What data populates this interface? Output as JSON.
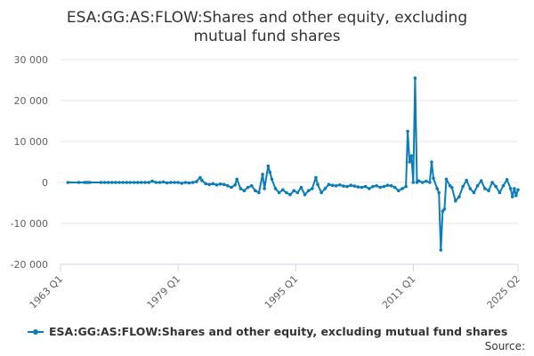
{
  "chart_data": {
    "type": "line",
    "title_lines": [
      "ESA:GG:AS:FLOW:Shares and other equity, excluding",
      "mutual fund shares"
    ],
    "xlabel": "",
    "ylabel": "",
    "x_start": "1963 Q1",
    "x_end": "2025 Q2",
    "x_ticks": [
      "1963 Q1",
      "1979 Q1",
      "1995 Q1",
      "2011 Q1",
      "2025 Q2"
    ],
    "ylim": [
      -20000,
      30000
    ],
    "y_ticks": [
      -20000,
      -10000,
      0,
      10000,
      20000,
      30000
    ],
    "y_tick_labels": [
      "-20 000",
      "-10 000",
      "0",
      "10 000",
      "20 000",
      "30 000"
    ],
    "grid": true,
    "legend_position": "bottom",
    "source_label": "Source:",
    "colors": {
      "series": "#0b7cba",
      "grid": "#e6e6e6",
      "axis": "#ccd6eb"
    },
    "series": [
      {
        "name": "ESA:GG:AS:FLOW:Shares and other equity, excluding mutual fund shares",
        "points": [
          [
            "1964 Q1",
            0
          ],
          [
            "1965 Q3",
            0
          ],
          [
            "1966 Q2",
            0
          ],
          [
            "1966 Q3",
            0
          ],
          [
            "1966 Q4",
            0
          ],
          [
            "1967 Q1",
            0
          ],
          [
            "1968 Q3",
            0
          ],
          [
            "1969 Q1",
            0
          ],
          [
            "1969 Q3",
            0
          ],
          [
            "1970 Q1",
            0
          ],
          [
            "1970 Q3",
            0
          ],
          [
            "1971 Q1",
            0
          ],
          [
            "1971 Q3",
            0
          ],
          [
            "1972 Q1",
            0
          ],
          [
            "1972 Q3",
            0
          ],
          [
            "1973 Q1",
            0
          ],
          [
            "1973 Q3",
            0
          ],
          [
            "1974 Q1",
            0
          ],
          [
            "1974 Q3",
            0
          ],
          [
            "1975 Q1",
            0
          ],
          [
            "1975 Q3",
            300
          ],
          [
            "1976 Q1",
            0
          ],
          [
            "1976 Q3",
            0
          ],
          [
            "1977 Q1",
            100
          ],
          [
            "1977 Q3",
            -100
          ],
          [
            "1978 Q1",
            0
          ],
          [
            "1978 Q3",
            0
          ],
          [
            "1979 Q1",
            0
          ],
          [
            "1979 Q3",
            -200
          ],
          [
            "1980 Q1",
            0
          ],
          [
            "1980 Q3",
            -100
          ],
          [
            "1981 Q1",
            0
          ],
          [
            "1981 Q3",
            200
          ],
          [
            "1982 Q1",
            1200
          ],
          [
            "1982 Q2",
            500
          ],
          [
            "1982 Q4",
            -300
          ],
          [
            "1983 Q2",
            -500
          ],
          [
            "1983 Q4",
            -300
          ],
          [
            "1984 Q2",
            -600
          ],
          [
            "1984 Q4",
            -400
          ],
          [
            "1985 Q2",
            -500
          ],
          [
            "1985 Q4",
            -800
          ],
          [
            "1986 Q2",
            -1200
          ],
          [
            "1986 Q4",
            -600
          ],
          [
            "1987 Q1",
            800
          ],
          [
            "1987 Q3",
            -1500
          ],
          [
            "1988 Q1",
            -2000
          ],
          [
            "1988 Q3",
            -1200
          ],
          [
            "1989 Q1",
            -800
          ],
          [
            "1989 Q3",
            -2000
          ],
          [
            "1990 Q1",
            -2500
          ],
          [
            "1990 Q3",
            2000
          ],
          [
            "1990 Q4",
            -1500
          ],
          [
            "1991 Q2",
            4000
          ],
          [
            "1991 Q3",
            2500
          ],
          [
            "1991 Q4",
            800
          ],
          [
            "1992 Q2",
            -1500
          ],
          [
            "1992 Q4",
            -2500
          ],
          [
            "1993 Q2",
            -1800
          ],
          [
            "1993 Q4",
            -2500
          ],
          [
            "1994 Q2",
            -3000
          ],
          [
            "1994 Q4",
            -2000
          ],
          [
            "1995 Q2",
            -2500
          ],
          [
            "1995 Q4",
            -1200
          ],
          [
            "1996 Q2",
            -3000
          ],
          [
            "1996 Q4",
            -2000
          ],
          [
            "1997 Q2",
            -1500
          ],
          [
            "1997 Q4",
            1200
          ],
          [
            "1998 Q1",
            -500
          ],
          [
            "1998 Q3",
            -2500
          ],
          [
            "1999 Q1",
            -1500
          ],
          [
            "1999 Q3",
            -500
          ],
          [
            "2000 Q1",
            -700
          ],
          [
            "2000 Q3",
            -800
          ],
          [
            "2001 Q1",
            -600
          ],
          [
            "2001 Q3",
            -900
          ],
          [
            "2002 Q1",
            -1000
          ],
          [
            "2002 Q3",
            -700
          ],
          [
            "2003 Q1",
            -900
          ],
          [
            "2003 Q3",
            -1100
          ],
          [
            "2004 Q1",
            -1200
          ],
          [
            "2004 Q3",
            -1000
          ],
          [
            "2005 Q1",
            -1500
          ],
          [
            "2005 Q3",
            -1000
          ],
          [
            "2006 Q1",
            -800
          ],
          [
            "2006 Q3",
            -1200
          ],
          [
            "2007 Q1",
            -1000
          ],
          [
            "2007 Q3",
            -700
          ],
          [
            "2008 Q1",
            -800
          ],
          [
            "2008 Q3",
            -1200
          ],
          [
            "2009 Q1",
            -2000
          ],
          [
            "2009 Q3",
            -1500
          ],
          [
            "2010 Q1",
            -1000
          ],
          [
            "2010 Q2",
            12500
          ],
          [
            "2010 Q3",
            5000
          ],
          [
            "2010 Q4",
            6500
          ],
          [
            "2011 Q1",
            0
          ],
          [
            "2011 Q2",
            25500
          ],
          [
            "2011 Q3",
            0
          ],
          [
            "2011 Q4",
            400
          ],
          [
            "2012 Q2",
            0
          ],
          [
            "2012 Q4",
            300
          ],
          [
            "2013 Q2",
            0
          ],
          [
            "2013 Q3",
            5000
          ],
          [
            "2013 Q4",
            1000
          ],
          [
            "2014 Q2",
            -1500
          ],
          [
            "2014 Q3",
            -2500
          ],
          [
            "2014 Q4",
            -16500
          ],
          [
            "2015 Q1",
            -7000
          ],
          [
            "2015 Q2",
            -6500
          ],
          [
            "2015 Q3",
            800
          ],
          [
            "2016 Q1",
            -800
          ],
          [
            "2016 Q2",
            -1200
          ],
          [
            "2016 Q4",
            -4500
          ],
          [
            "2017 Q2",
            -3500
          ],
          [
            "2017 Q4",
            -1000
          ],
          [
            "2018 Q2",
            500
          ],
          [
            "2018 Q4",
            -1500
          ],
          [
            "2019 Q2",
            -2500
          ],
          [
            "2019 Q4",
            -800
          ],
          [
            "2020 Q2",
            400
          ],
          [
            "2020 Q4",
            -1500
          ],
          [
            "2021 Q2",
            -2000
          ],
          [
            "2021 Q4",
            0
          ],
          [
            "2022 Q2",
            -1000
          ],
          [
            "2022 Q4",
            -2500
          ],
          [
            "2023 Q2",
            -800
          ],
          [
            "2023 Q4",
            700
          ],
          [
            "2024 Q2",
            -1500
          ],
          [
            "2024 Q3",
            -3500
          ],
          [
            "2024 Q4",
            -1500
          ],
          [
            "2025 Q1",
            -3200
          ],
          [
            "2025 Q2",
            -1800
          ]
        ]
      }
    ]
  }
}
